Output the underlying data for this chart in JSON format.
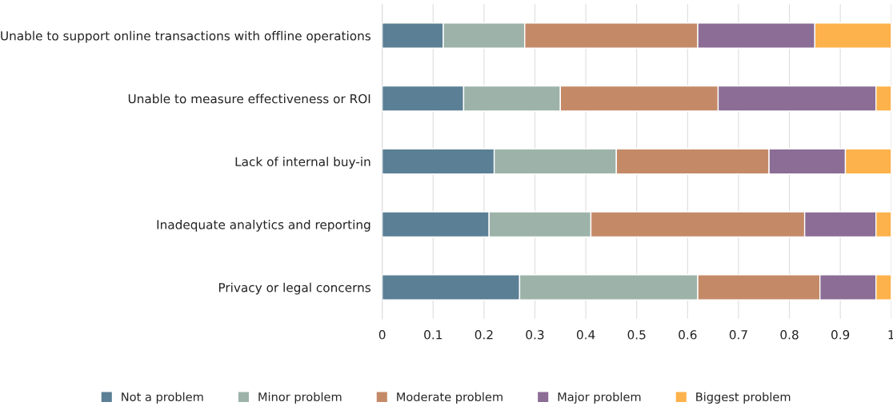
{
  "chart_data": {
    "type": "bar",
    "orientation": "horizontal",
    "stacked": true,
    "categories": [
      "Unable to support online transactions with offline operations",
      "Unable to measure effectiveness or ROI",
      "Lack of internal buy-in",
      "Inadequate analytics and reporting",
      "Privacy or legal concerns"
    ],
    "series": [
      {
        "name": "Not a problem",
        "color": "#5b7f95",
        "values": [
          0.12,
          0.16,
          0.22,
          0.21,
          0.27
        ]
      },
      {
        "name": "Minor problem",
        "color": "#9db3a9",
        "values": [
          0.16,
          0.19,
          0.24,
          0.2,
          0.35
        ]
      },
      {
        "name": "Moderate problem",
        "color": "#c48a68",
        "values": [
          0.34,
          0.31,
          0.3,
          0.42,
          0.24
        ]
      },
      {
        "name": "Major problem",
        "color": "#8b6d95",
        "values": [
          0.23,
          0.31,
          0.15,
          0.14,
          0.11
        ]
      },
      {
        "name": "Biggest problem",
        "color": "#fdb24b",
        "values": [
          0.15,
          0.03,
          0.09,
          0.03,
          0.03
        ]
      }
    ],
    "xlim": [
      0,
      1
    ],
    "xticks": [
      0,
      0.1,
      0.2,
      0.3,
      0.4,
      0.5,
      0.6,
      0.7,
      0.8,
      0.9,
      1
    ],
    "grid": "x",
    "legend": "bottom"
  }
}
